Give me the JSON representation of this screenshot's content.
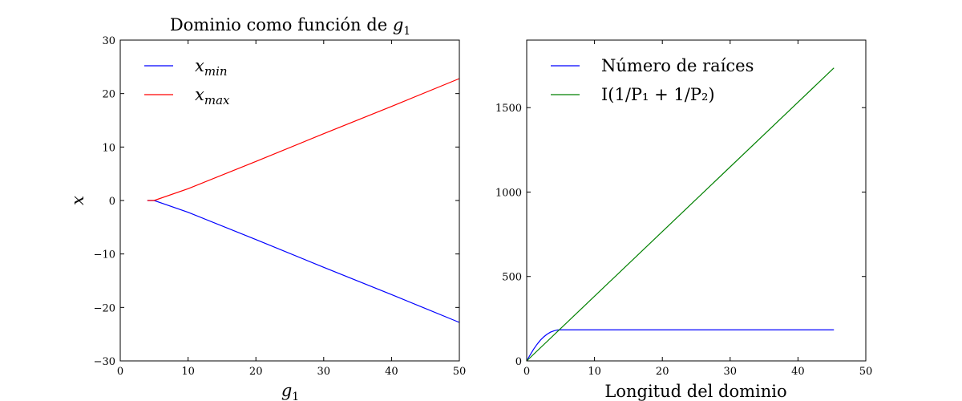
{
  "chart_data": [
    {
      "type": "line",
      "title_text": "Dominio como función de ",
      "title_var": "g",
      "title_sub": "1",
      "xlabel_var": "g",
      "xlabel_sub": "1",
      "ylabel": "x",
      "xlim": [
        0,
        50
      ],
      "ylim": [
        -30,
        30
      ],
      "xticks": [
        "0",
        "10",
        "20",
        "30",
        "40",
        "50"
      ],
      "yticks": [
        "−30",
        "−20",
        "−10",
        "0",
        "10",
        "20",
        "30"
      ],
      "xtick_values": [
        0,
        10,
        20,
        30,
        40,
        50
      ],
      "ytick_values": [
        -30,
        -20,
        -10,
        0,
        10,
        20,
        30
      ],
      "grid": false,
      "legend_position": "top-left",
      "series": [
        {
          "name": "x",
          "name_sub": "min",
          "color": "#0000ff",
          "x": [
            4,
            5,
            10,
            20,
            30,
            40,
            50
          ],
          "y": [
            0,
            0,
            -2.2,
            -7.3,
            -12.5,
            -17.6,
            -22.8
          ]
        },
        {
          "name": "x",
          "name_sub": "max",
          "color": "#ff0000",
          "x": [
            4,
            5,
            10,
            20,
            30,
            40,
            50
          ],
          "y": [
            0,
            0,
            2.2,
            7.3,
            12.5,
            17.6,
            22.8
          ]
        }
      ]
    },
    {
      "type": "line",
      "xlabel": "Longitud del dominio",
      "ylabel": "",
      "xlim": [
        0,
        50
      ],
      "ylim": [
        0,
        1900
      ],
      "xticks": [
        "0",
        "10",
        "20",
        "30",
        "40",
        "50"
      ],
      "yticks": [
        "0",
        "500",
        "1000",
        "1500"
      ],
      "xtick_values": [
        0,
        10,
        20,
        30,
        40,
        50
      ],
      "ytick_values": [
        0,
        500,
        1000,
        1500
      ],
      "grid": false,
      "legend_position": "top-left",
      "series": [
        {
          "name": "Número de raíces",
          "color": "#0000ff",
          "x": [
            0,
            0.5,
            1,
            1.5,
            2,
            2.5,
            3,
            3.5,
            4,
            4.5,
            5,
            10,
            20,
            30,
            45.3
          ],
          "y": [
            0,
            35,
            68,
            97,
            122,
            142,
            158,
            170,
            178,
            183,
            184,
            184,
            184,
            184,
            184
          ]
        },
        {
          "name": "I(1/P₁ + 1/P₂)",
          "color": "#008000",
          "x": [
            0,
            45.3
          ],
          "y": [
            0,
            1735
          ]
        }
      ]
    }
  ]
}
